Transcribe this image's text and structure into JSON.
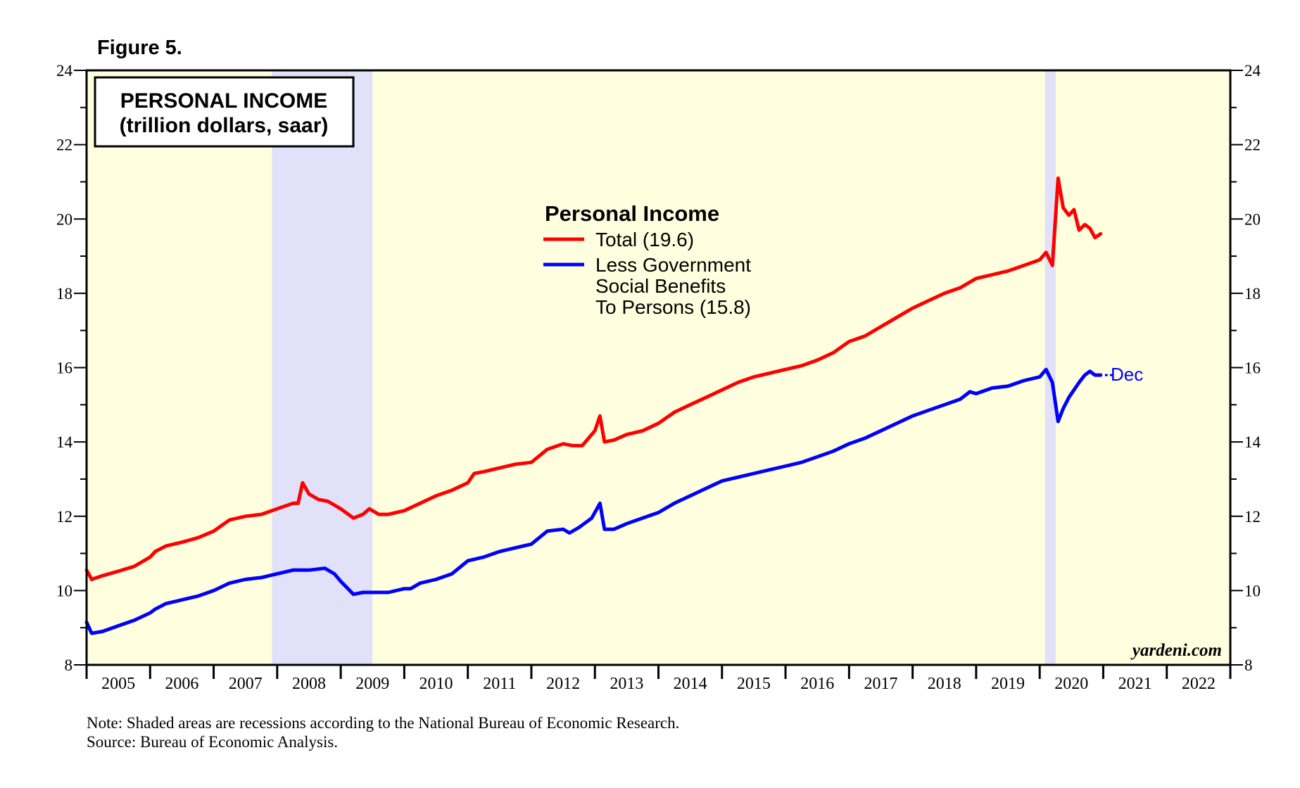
{
  "figure_label": "Figure 5.",
  "chart_title": {
    "line1": "PERSONAL INCOME",
    "line2": "(trillion dollars, saar)"
  },
  "legend": {
    "heading": "Personal Income",
    "total_label": "Total (19.6)",
    "less_label_lines": [
      "Less Government",
      "Social Benefits",
      "To Persons (15.8)"
    ]
  },
  "end_label": "Dec",
  "watermark": "yardeni.com",
  "note": "Note: Shaded areas are recessions according to the National Bureau of Economic Research.",
  "source": "Source: Bureau of Economic Analysis.",
  "colors": {
    "total": "#ff0000",
    "less_benefits": "#0000ff",
    "plot_background": "#ffffe0",
    "recession": "#e1e1f9"
  },
  "chart_data": {
    "type": "line",
    "title": "PERSONAL INCOME (trillion dollars, saar)",
    "xlabel": "",
    "ylabel": "",
    "xlim": [
      2005.0,
      2023.0
    ],
    "ylim": [
      8,
      24
    ],
    "y_ticks": [
      8,
      10,
      12,
      14,
      16,
      18,
      20,
      22,
      24
    ],
    "x_tick_labels": [
      "2005",
      "2006",
      "2007",
      "2008",
      "2009",
      "2010",
      "2011",
      "2012",
      "2013",
      "2014",
      "2015",
      "2016",
      "2017",
      "2018",
      "2019",
      "2020",
      "2021",
      "2022"
    ],
    "recessions": [
      [
        2007.917,
        2009.5
      ],
      [
        2020.083,
        2020.25
      ]
    ],
    "series": [
      {
        "name": "Total",
        "color": "#ff0000",
        "points": [
          [
            2005.0,
            10.55
          ],
          [
            2005.08,
            10.3
          ],
          [
            2005.25,
            10.4
          ],
          [
            2005.5,
            10.52
          ],
          [
            2005.75,
            10.65
          ],
          [
            2006.0,
            10.9
          ],
          [
            2006.08,
            11.05
          ],
          [
            2006.25,
            11.2
          ],
          [
            2006.5,
            11.3
          ],
          [
            2006.75,
            11.42
          ],
          [
            2007.0,
            11.6
          ],
          [
            2007.25,
            11.9
          ],
          [
            2007.5,
            12.0
          ],
          [
            2007.75,
            12.05
          ],
          [
            2008.0,
            12.2
          ],
          [
            2008.25,
            12.35
          ],
          [
            2008.33,
            12.35
          ],
          [
            2008.4,
            12.9
          ],
          [
            2008.5,
            12.6
          ],
          [
            2008.65,
            12.45
          ],
          [
            2008.8,
            12.4
          ],
          [
            2009.0,
            12.2
          ],
          [
            2009.2,
            11.95
          ],
          [
            2009.35,
            12.05
          ],
          [
            2009.45,
            12.2
          ],
          [
            2009.6,
            12.05
          ],
          [
            2009.75,
            12.05
          ],
          [
            2010.0,
            12.15
          ],
          [
            2010.25,
            12.35
          ],
          [
            2010.5,
            12.55
          ],
          [
            2010.75,
            12.7
          ],
          [
            2011.0,
            12.9
          ],
          [
            2011.1,
            13.15
          ],
          [
            2011.25,
            13.2
          ],
          [
            2011.5,
            13.3
          ],
          [
            2011.75,
            13.4
          ],
          [
            2012.0,
            13.45
          ],
          [
            2012.25,
            13.8
          ],
          [
            2012.5,
            13.95
          ],
          [
            2012.65,
            13.9
          ],
          [
            2012.8,
            13.9
          ],
          [
            2013.0,
            14.3
          ],
          [
            2013.08,
            14.7
          ],
          [
            2013.15,
            14.0
          ],
          [
            2013.3,
            14.05
          ],
          [
            2013.5,
            14.2
          ],
          [
            2013.75,
            14.3
          ],
          [
            2014.0,
            14.5
          ],
          [
            2014.25,
            14.8
          ],
          [
            2014.5,
            15.0
          ],
          [
            2014.75,
            15.2
          ],
          [
            2015.0,
            15.4
          ],
          [
            2015.25,
            15.6
          ],
          [
            2015.5,
            15.75
          ],
          [
            2015.75,
            15.85
          ],
          [
            2016.0,
            15.95
          ],
          [
            2016.25,
            16.05
          ],
          [
            2016.5,
            16.2
          ],
          [
            2016.75,
            16.4
          ],
          [
            2017.0,
            16.7
          ],
          [
            2017.25,
            16.85
          ],
          [
            2017.5,
            17.1
          ],
          [
            2017.75,
            17.35
          ],
          [
            2018.0,
            17.6
          ],
          [
            2018.25,
            17.8
          ],
          [
            2018.5,
            18.0
          ],
          [
            2018.75,
            18.15
          ],
          [
            2019.0,
            18.4
          ],
          [
            2019.25,
            18.5
          ],
          [
            2019.5,
            18.6
          ],
          [
            2019.75,
            18.75
          ],
          [
            2020.0,
            18.9
          ],
          [
            2020.1,
            19.1
          ],
          [
            2020.2,
            18.75
          ],
          [
            2020.29,
            21.1
          ],
          [
            2020.37,
            20.3
          ],
          [
            2020.46,
            20.1
          ],
          [
            2020.54,
            20.25
          ],
          [
            2020.62,
            19.7
          ],
          [
            2020.71,
            19.85
          ],
          [
            2020.79,
            19.75
          ],
          [
            2020.87,
            19.5
          ],
          [
            2020.96,
            19.6
          ]
        ]
      },
      {
        "name": "Less Government Social Benefits To Persons",
        "color": "#0000ff",
        "points": [
          [
            2005.0,
            9.15
          ],
          [
            2005.08,
            8.85
          ],
          [
            2005.25,
            8.9
          ],
          [
            2005.5,
            9.05
          ],
          [
            2005.75,
            9.2
          ],
          [
            2006.0,
            9.4
          ],
          [
            2006.08,
            9.5
          ],
          [
            2006.25,
            9.65
          ],
          [
            2006.5,
            9.75
          ],
          [
            2006.75,
            9.85
          ],
          [
            2007.0,
            10.0
          ],
          [
            2007.25,
            10.2
          ],
          [
            2007.5,
            10.3
          ],
          [
            2007.75,
            10.35
          ],
          [
            2008.0,
            10.45
          ],
          [
            2008.25,
            10.55
          ],
          [
            2008.35,
            10.55
          ],
          [
            2008.5,
            10.55
          ],
          [
            2008.75,
            10.6
          ],
          [
            2008.9,
            10.45
          ],
          [
            2009.0,
            10.25
          ],
          [
            2009.2,
            9.9
          ],
          [
            2009.35,
            9.95
          ],
          [
            2009.5,
            9.95
          ],
          [
            2009.75,
            9.95
          ],
          [
            2010.0,
            10.05
          ],
          [
            2010.1,
            10.05
          ],
          [
            2010.25,
            10.2
          ],
          [
            2010.5,
            10.3
          ],
          [
            2010.75,
            10.45
          ],
          [
            2011.0,
            10.8
          ],
          [
            2011.25,
            10.9
          ],
          [
            2011.5,
            11.05
          ],
          [
            2011.75,
            11.15
          ],
          [
            2012.0,
            11.25
          ],
          [
            2012.25,
            11.6
          ],
          [
            2012.5,
            11.65
          ],
          [
            2012.6,
            11.55
          ],
          [
            2012.75,
            11.7
          ],
          [
            2012.95,
            11.95
          ],
          [
            2013.08,
            12.35
          ],
          [
            2013.15,
            11.65
          ],
          [
            2013.3,
            11.65
          ],
          [
            2013.5,
            11.8
          ],
          [
            2013.75,
            11.95
          ],
          [
            2014.0,
            12.1
          ],
          [
            2014.25,
            12.35
          ],
          [
            2014.5,
            12.55
          ],
          [
            2014.75,
            12.75
          ],
          [
            2015.0,
            12.95
          ],
          [
            2015.25,
            13.05
          ],
          [
            2015.5,
            13.15
          ],
          [
            2015.75,
            13.25
          ],
          [
            2016.0,
            13.35
          ],
          [
            2016.25,
            13.45
          ],
          [
            2016.5,
            13.6
          ],
          [
            2016.75,
            13.75
          ],
          [
            2017.0,
            13.95
          ],
          [
            2017.25,
            14.1
          ],
          [
            2017.5,
            14.3
          ],
          [
            2017.75,
            14.5
          ],
          [
            2018.0,
            14.7
          ],
          [
            2018.25,
            14.85
          ],
          [
            2018.5,
            15.0
          ],
          [
            2018.75,
            15.15
          ],
          [
            2018.9,
            15.35
          ],
          [
            2019.0,
            15.3
          ],
          [
            2019.25,
            15.45
          ],
          [
            2019.5,
            15.5
          ],
          [
            2019.75,
            15.65
          ],
          [
            2020.0,
            15.75
          ],
          [
            2020.1,
            15.95
          ],
          [
            2020.2,
            15.6
          ],
          [
            2020.29,
            14.55
          ],
          [
            2020.37,
            14.9
          ],
          [
            2020.46,
            15.2
          ],
          [
            2020.54,
            15.4
          ],
          [
            2020.62,
            15.6
          ],
          [
            2020.71,
            15.8
          ],
          [
            2020.79,
            15.9
          ],
          [
            2020.87,
            15.8
          ],
          [
            2020.96,
            15.8
          ]
        ]
      }
    ]
  }
}
